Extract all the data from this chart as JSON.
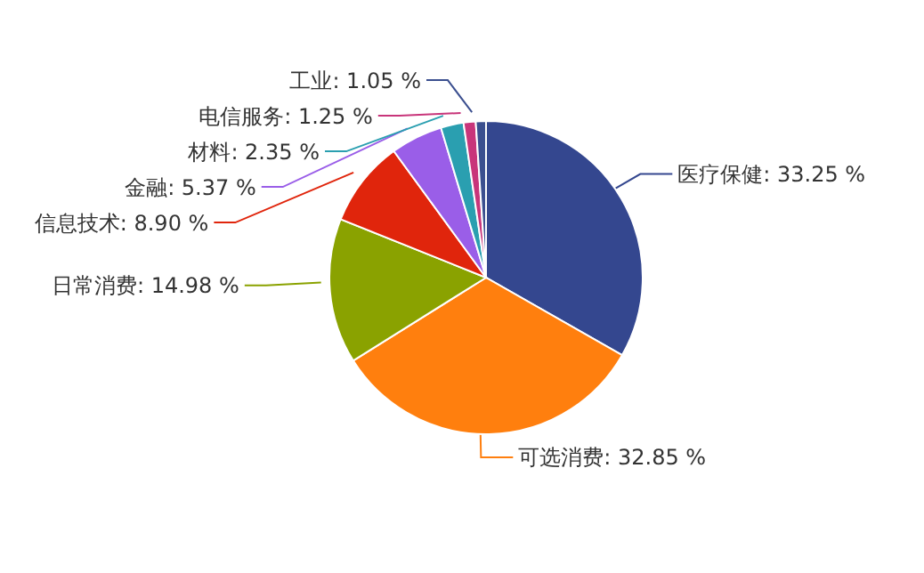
{
  "chart_data": {
    "type": "pie",
    "categories": [
      "医疗保健",
      "可选消费",
      "日常消费",
      "信息技术",
      "金融",
      "材料",
      "电信服务",
      "工业"
    ],
    "values": [
      33.25,
      32.85,
      14.98,
      8.9,
      5.37,
      2.35,
      1.25,
      1.05
    ],
    "value_labels": [
      "33.25 %",
      "32.85 %",
      "14.98 %",
      "8.90 %",
      "5.37 %",
      "2.35 %",
      "1.25 %",
      "1.05 %"
    ],
    "colors": [
      "#34478f",
      "#ff7f0e",
      "#8aa200",
      "#e0250c",
      "#9a5ee8",
      "#2a9fb0",
      "#c8357a",
      "#3b4f8f"
    ],
    "legend": false
  }
}
